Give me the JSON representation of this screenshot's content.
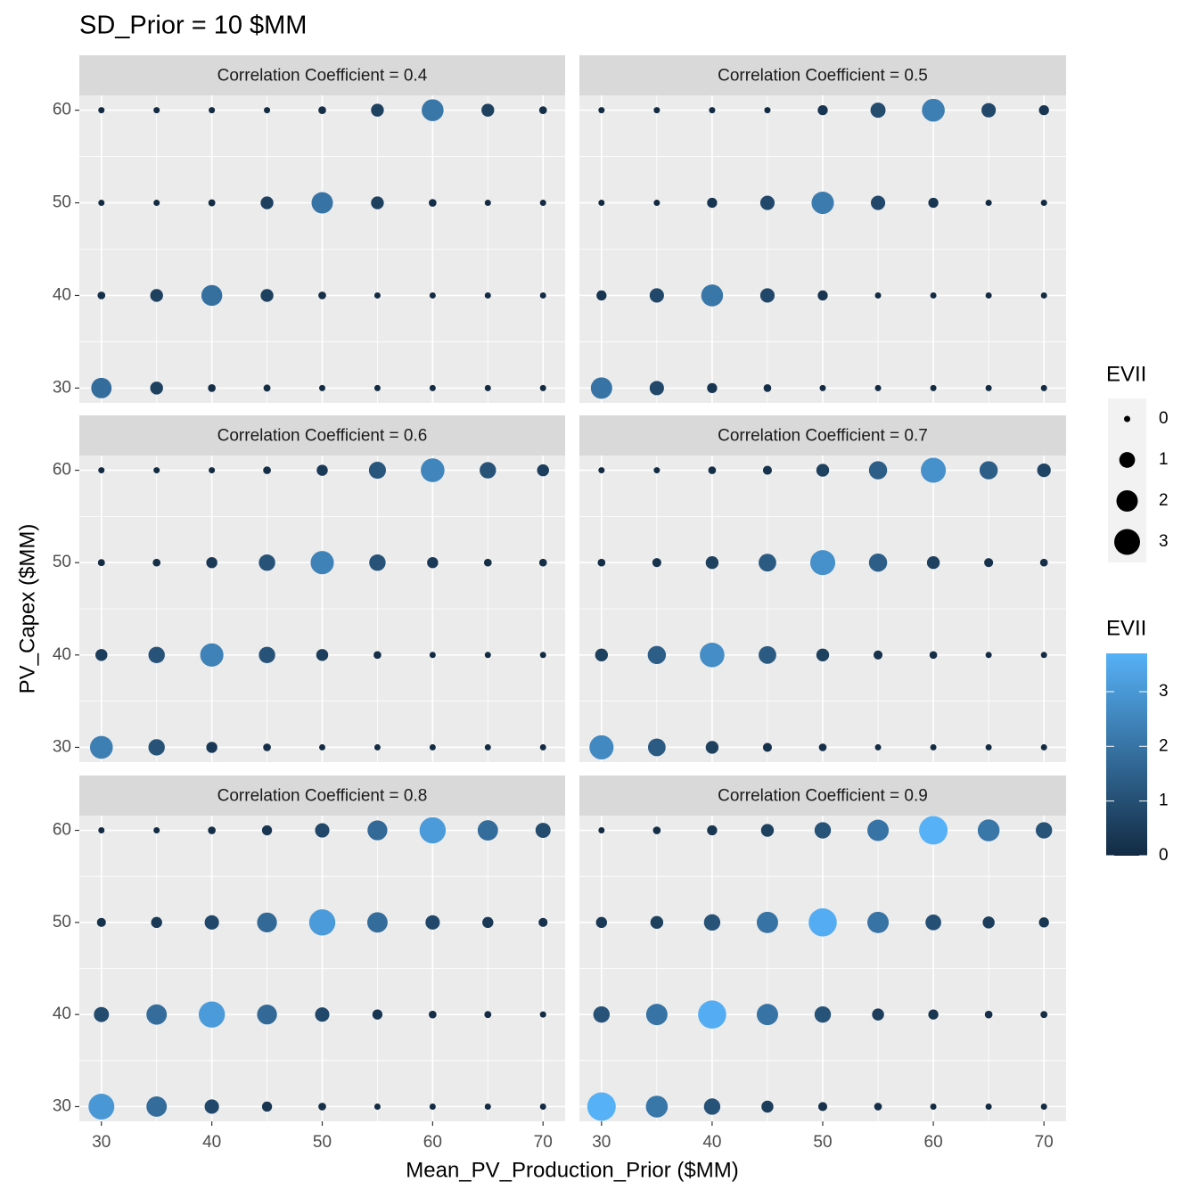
{
  "title": "SD_Prior = 10 $MM",
  "x_label": "Mean_PV_Production_Prior ($MM)",
  "y_label": "PV_Capex ($MM)",
  "size_legend": {
    "title": "EVII",
    "ticks": [
      0,
      1,
      2,
      3
    ],
    "lim": [
      0,
      3.7
    ]
  },
  "color_legend": {
    "title": "EVII",
    "ticks": [
      0,
      1,
      2,
      3
    ],
    "lim": [
      0,
      3.7
    ],
    "colors": [
      "#132B43",
      "#56B1F7"
    ]
  },
  "chart_data": [
    {
      "type": "scatter",
      "title": "Correlation Coefficient = 0.4",
      "x": [
        30,
        35,
        40,
        45,
        50,
        55,
        60,
        65,
        70
      ],
      "y": [
        30,
        40,
        50,
        60
      ],
      "values": [
        [
          1.8,
          0.6,
          0.1,
          0.05,
          0,
          0,
          0,
          0,
          0
        ],
        [
          0.1,
          0.6,
          1.9,
          0.6,
          0.1,
          0,
          0,
          0,
          0
        ],
        [
          0,
          0,
          0.05,
          0.6,
          2.0,
          0.6,
          0.1,
          0,
          0
        ],
        [
          0,
          0,
          0,
          0,
          0.1,
          0.6,
          2.1,
          0.6,
          0.1
        ]
      ],
      "xlim": [
        28,
        72
      ],
      "ylim": [
        28.4,
        61.6
      ],
      "xticks": [
        30,
        40,
        50,
        60,
        70
      ],
      "yticks": [
        30,
        40,
        50,
        60
      ],
      "grid": true
    },
    {
      "type": "scatter",
      "title": "Correlation Coefficient = 0.5",
      "x": [
        30,
        35,
        40,
        45,
        50,
        55,
        60,
        65,
        70
      ],
      "y": [
        30,
        40,
        50,
        60
      ],
      "values": [
        [
          2.0,
          0.8,
          0.3,
          0.1,
          0,
          0,
          0,
          0,
          0
        ],
        [
          0.3,
          0.8,
          2.1,
          0.8,
          0.3,
          0,
          0,
          0,
          0
        ],
        [
          0,
          0,
          0.3,
          0.8,
          2.2,
          0.8,
          0.3,
          0,
          0
        ],
        [
          0,
          0,
          0,
          0,
          0.3,
          0.9,
          2.3,
          0.8,
          0.3
        ]
      ],
      "xlim": [
        28,
        72
      ],
      "ylim": [
        28.4,
        61.6
      ],
      "xticks": [
        30,
        40,
        50,
        60,
        70
      ],
      "yticks": [
        30,
        40,
        50,
        60
      ],
      "grid": true
    },
    {
      "type": "scatter",
      "title": "Correlation Coefficient = 0.6",
      "x": [
        30,
        35,
        40,
        45,
        50,
        55,
        60,
        65,
        70
      ],
      "y": [
        30,
        40,
        50,
        60
      ],
      "values": [
        [
          2.3,
          1.1,
          0.4,
          0.1,
          0,
          0,
          0,
          0,
          0
        ],
        [
          0.5,
          1.1,
          2.4,
          1.1,
          0.5,
          0.1,
          0,
          0,
          0
        ],
        [
          0.05,
          0.1,
          0.4,
          1.1,
          2.4,
          1.1,
          0.4,
          0.1,
          0.1
        ],
        [
          0,
          0,
          0,
          0.1,
          0.4,
          1.2,
          2.5,
          1.1,
          0.5
        ]
      ],
      "xlim": [
        28,
        72
      ],
      "ylim": [
        28.4,
        61.6
      ],
      "xticks": [
        30,
        40,
        50,
        60,
        70
      ],
      "yticks": [
        30,
        40,
        50,
        60
      ],
      "grid": true
    },
    {
      "type": "scatter",
      "title": "Correlation Coefficient = 0.7",
      "x": [
        30,
        35,
        40,
        45,
        50,
        55,
        60,
        65,
        70
      ],
      "y": [
        30,
        40,
        50,
        60
      ],
      "values": [
        [
          2.6,
          1.3,
          0.6,
          0.2,
          0.1,
          0,
          0,
          0,
          0
        ],
        [
          0.6,
          1.4,
          2.7,
          1.3,
          0.6,
          0.2,
          0.1,
          0,
          0
        ],
        [
          0.1,
          0.2,
          0.6,
          1.3,
          2.8,
          1.4,
          0.6,
          0.2,
          0.1
        ],
        [
          0,
          0,
          0.1,
          0.2,
          0.6,
          1.4,
          2.8,
          1.4,
          0.7
        ]
      ],
      "xlim": [
        28,
        72
      ],
      "ylim": [
        28.4,
        61.6
      ],
      "xticks": [
        30,
        40,
        50,
        60,
        70
      ],
      "yticks": [
        30,
        40,
        50,
        60
      ],
      "grid": true
    },
    {
      "type": "scatter",
      "title": "Correlation Coefficient = 0.8",
      "x": [
        30,
        35,
        40,
        45,
        50,
        55,
        60,
        65,
        70
      ],
      "y": [
        30,
        40,
        50,
        60
      ],
      "values": [
        [
          3.0,
          1.8,
          0.8,
          0.3,
          0.1,
          0,
          0,
          0,
          0
        ],
        [
          0.9,
          1.8,
          3.1,
          1.7,
          0.8,
          0.3,
          0.1,
          0.05,
          0
        ],
        [
          0.2,
          0.4,
          0.8,
          1.7,
          3.1,
          1.8,
          0.8,
          0.4,
          0.2
        ],
        [
          0,
          0,
          0.1,
          0.3,
          0.8,
          1.7,
          3.1,
          1.8,
          0.9
        ]
      ],
      "xlim": [
        28,
        72
      ],
      "ylim": [
        28.4,
        61.6
      ],
      "xticks": [
        30,
        40,
        50,
        60,
        70
      ],
      "yticks": [
        30,
        40,
        50,
        60
      ],
      "grid": true
    },
    {
      "type": "scatter",
      "title": "Correlation Coefficient = 0.9",
      "x": [
        30,
        35,
        40,
        45,
        50,
        55,
        60,
        65,
        70
      ],
      "y": [
        30,
        40,
        50,
        60
      ],
      "values": [
        [
          3.7,
          2.1,
          1.1,
          0.5,
          0.2,
          0.1,
          0,
          0,
          0
        ],
        [
          1.1,
          2.0,
          3.6,
          2.0,
          1.1,
          0.5,
          0.3,
          0.1,
          0.05
        ],
        [
          0.4,
          0.6,
          1.1,
          2.0,
          3.6,
          2.0,
          1.0,
          0.5,
          0.3
        ],
        [
          0,
          0.1,
          0.3,
          0.6,
          1.1,
          2.0,
          3.7,
          2.1,
          1.1
        ]
      ],
      "xlim": [
        28,
        72
      ],
      "ylim": [
        28.4,
        61.6
      ],
      "xticks": [
        30,
        40,
        50,
        60,
        70
      ],
      "yticks": [
        30,
        40,
        50,
        60
      ],
      "grid": true
    }
  ]
}
